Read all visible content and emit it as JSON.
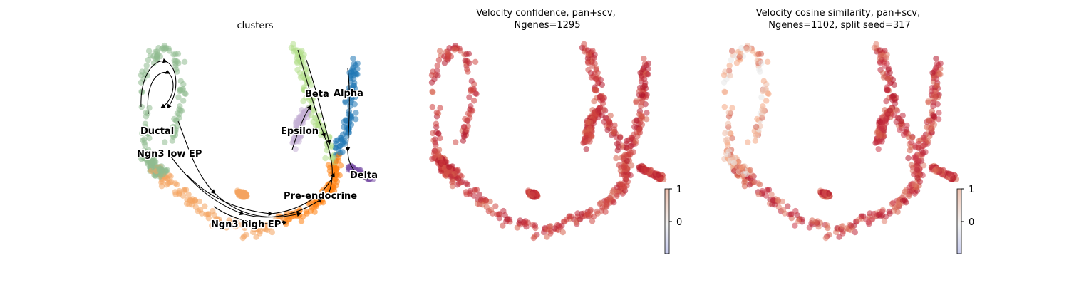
{
  "chart_data": [
    {
      "type": "scatter",
      "title": "clusters",
      "clusters": [
        {
          "name": "Ductal",
          "color": "#8fbc8f"
        },
        {
          "name": "Ngn3 low EP",
          "color": "#8fbc8f"
        },
        {
          "name": "Ngn3 high EP",
          "color": "#f4a460"
        },
        {
          "name": "Pre-endocrine",
          "color": "#ff7f0e"
        },
        {
          "name": "Beta",
          "color": "#b2df8a"
        },
        {
          "name": "Alpha",
          "color": "#1f77b4"
        },
        {
          "name": "Delta",
          "color": "#7b52a8"
        },
        {
          "name": "Epsilon",
          "color": "#c5b0d5"
        }
      ],
      "overlay": "velocity streamlines"
    },
    {
      "type": "scatter",
      "title": "Velocity confidence, pan+scv,\nNgenes=1295",
      "colorbar": {
        "min_tick": "0",
        "max_tick": "1",
        "colormap": "coolwarm"
      }
    },
    {
      "type": "scatter",
      "title": "Velocity cosine similarity, pan+scv,\nNgenes=1102, split seed=317",
      "colorbar": {
        "min_tick": "0",
        "max_tick": "1",
        "colormap": "coolwarm"
      }
    }
  ]
}
